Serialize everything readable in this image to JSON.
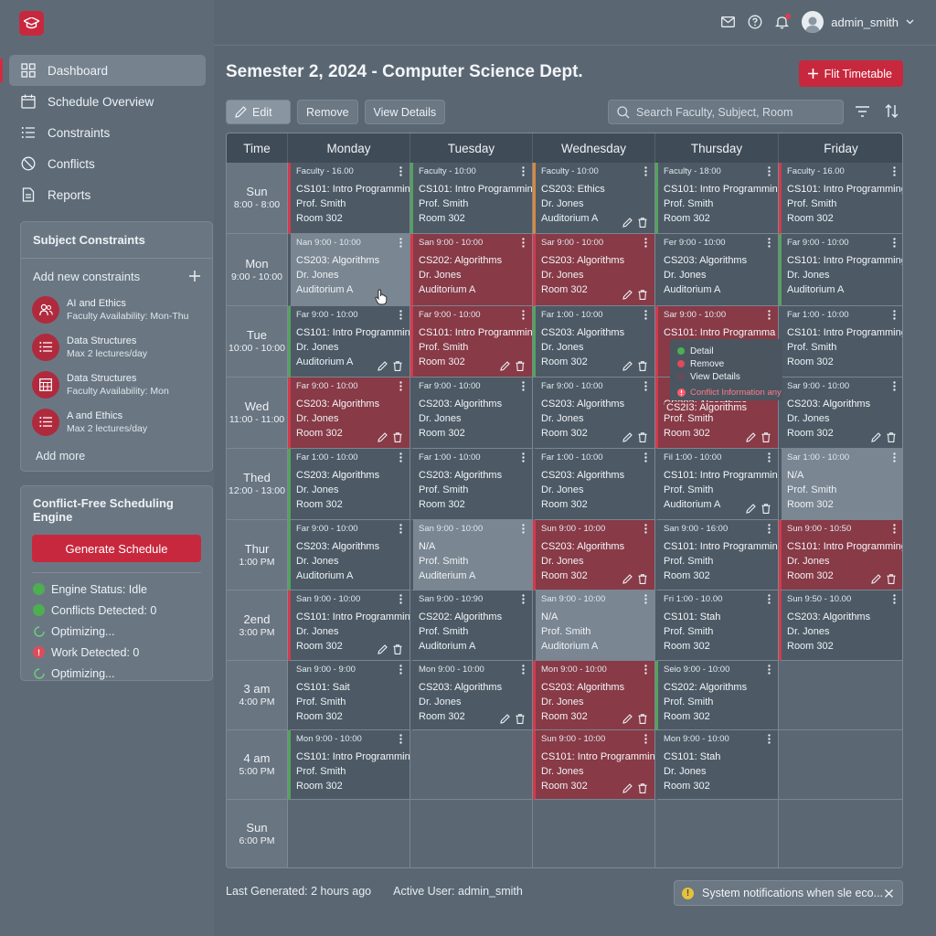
{
  "nav": [
    "Dashboard",
    "Schedule Overview",
    "Constraints",
    "Conflicts",
    "Reports"
  ],
  "constraints_panel": {
    "title": "Subject Constraints",
    "add_label": "Add new constraints",
    "items": [
      {
        "name": "AI and Ethics",
        "detail": "Faculty Availability: Mon-Thu",
        "icon": "people-icon"
      },
      {
        "name": "Data Structures",
        "detail": "Max 2 lectures/day",
        "icon": "list-icon"
      },
      {
        "name": "Data Structures",
        "detail": "Faculty Availability: Mon",
        "icon": "calendar-grid-icon"
      },
      {
        "name": "A and Ethics",
        "detail": "Max 2 lectures/day",
        "icon": "list-icon"
      }
    ],
    "add_more": "Add more"
  },
  "engine": {
    "title": "Conflict-Free Scheduling Engine",
    "button": "Generate Schedule",
    "status": [
      {
        "text": "Engine Status: Idle",
        "kind": "green"
      },
      {
        "text": "Conflicts Detected: 0",
        "kind": "green"
      },
      {
        "text": "Optimizing...",
        "kind": "spin"
      },
      {
        "text": "Work Detected: 0",
        "kind": "red"
      },
      {
        "text": "Optimizing...",
        "kind": "spin"
      }
    ]
  },
  "user": "admin_smith",
  "page_title": "Semester 2, 2024 - Computer Science Dept.",
  "fit_button": "Flit Timetable",
  "toolbar": {
    "edit": "Edit",
    "remove": "Remove",
    "view": "View Details"
  },
  "search_placeholder": "Search Faculty, Subject, Room",
  "headers": [
    "Time",
    "Monday",
    "Tuesday",
    "Wednesday",
    "Thursday",
    "Friday"
  ],
  "rows": [
    {
      "day": "Sun",
      "time": "8:00 - 8:00",
      "cells": [
        {
          "t": "Faculty - 16.00",
          "s": "CS101: Intro Programming",
          "p": "Prof. Smith",
          "r": "Room 302",
          "c": "r"
        },
        {
          "t": "Faculty - 10:00",
          "s": "CS101: Intro Programming",
          "p": "Prof. Smith",
          "r": "Room 302",
          "c": "g"
        },
        {
          "t": "Faculty - 10:00",
          "s": "CS203: Ethics",
          "p": "Dr. Jones",
          "r": "Auditorium A",
          "c": "o",
          "a": 1
        },
        {
          "t": "Faculty - 18:00",
          "s": "CS101: Intro Programming",
          "p": "Prof. Smith",
          "r": "Room 302",
          "c": "g"
        },
        {
          "t": "Faculty - 16.00",
          "s": "CS101: Intro Programming",
          "p": "Prof. Smith",
          "r": "Room 302",
          "c": "r"
        }
      ]
    },
    {
      "day": "Mon",
      "time": "9:00 - 10:00",
      "cells": [
        {
          "t": "Nan 9:00 - 10:00",
          "s": "CS203: Algorithms",
          "p": "Dr. Jones",
          "r": "Auditorium A",
          "c": "lt"
        },
        {
          "t": "San 9:00 - 10:00",
          "s": "CS202: Algorithms",
          "p": "Dr. Jones",
          "r": "Auditorium A",
          "c": "rb"
        },
        {
          "t": "Sar 9:00 - 10:00",
          "s": "CS203: Algorithms",
          "p": "Dr. Jones",
          "r": "Room 302",
          "c": "rb",
          "a": 1
        },
        {
          "t": "Fer 9:00 - 10:00",
          "s": "CS203: Algorithms",
          "p": "Dr. Jones",
          "r": "Auditorium A",
          "c": "n"
        },
        {
          "t": "Far 9:00 - 10:00",
          "s": "CS101: Intro Programming",
          "p": "Dr. Jones",
          "r": "Auditorium A",
          "c": "g"
        }
      ]
    },
    {
      "day": "Tue",
      "time": "10:00 - 10:00",
      "cells": [
        {
          "t": "Far 9:00 - 10:00",
          "s": "CS101: Intro Programming",
          "p": "Dr. Jones",
          "r": "Auditorium A",
          "c": "g",
          "a": 1
        },
        {
          "t": "Far 9:00 - 10:00",
          "s": "CS101: Intro Programming",
          "p": "Prof. Smith",
          "r": "Room 302",
          "c": "rb",
          "a": 1
        },
        {
          "t": "Far 1:00 - 10:00",
          "s": "CS203: Algorithms",
          "p": "Dr. Jones",
          "r": "Room 302",
          "c": "g",
          "a": 1
        },
        {
          "t": "Sar 9:00 - 10:00",
          "s": "CS101: Intro Programma",
          "p": "",
          "r": "",
          "c": "rb"
        },
        {
          "t": "Far 1:00 - 10:00",
          "s": "CS101: Intro Programming",
          "p": "Prof. Smith",
          "r": "Room 302",
          "c": "n"
        }
      ]
    },
    {
      "day": "Wed",
      "time": "11:00 - 11:00",
      "cells": [
        {
          "t": "Far 9:00 - 10:00",
          "s": "CS203: Algorithms",
          "p": "Dr. Jones",
          "r": "Room 302",
          "c": "rb",
          "a": 1
        },
        {
          "t": "Far 9:00 - 10:00",
          "s": "CS203: Algorithms",
          "p": "Dr. Jones",
          "r": "Room 302",
          "c": "n"
        },
        {
          "t": "Far 9:00 - 10:00",
          "s": "CS203: Algorithms",
          "p": "Dr. Jones",
          "r": "Room 302",
          "c": "n",
          "a": 1
        },
        {
          "t": "",
          "s": "CS203: Algorithms",
          "p": "Prof. Smith",
          "r": "Room 302",
          "c": "rb",
          "a": 1
        },
        {
          "t": "Sar 9:00 - 10:00",
          "s": "CS203: Algorithms",
          "p": "Dr. Jones",
          "r": "Room 302",
          "c": "n",
          "a": 1
        }
      ]
    },
    {
      "day": "Thed",
      "time": "12:00 - 13:00",
      "cells": [
        {
          "t": "Far 1:00 - 10:00",
          "s": "CS203: Algorithms",
          "p": "Dr. Jones",
          "r": "Room 302",
          "c": "g"
        },
        {
          "t": "Far 1:00 - 10:00",
          "s": "CS203: Algorithms",
          "p": "Prof. Smith",
          "r": "Room 302",
          "c": "n"
        },
        {
          "t": "Far 1:00 - 10:00",
          "s": "CS203: Algorithms",
          "p": "Dr. Jones",
          "r": "Room 302",
          "c": "n"
        },
        {
          "t": "Fil 1:00 - 10:00",
          "s": "CS101: Intro Programming",
          "p": "Prof. Smith",
          "r": "Auditorium A",
          "c": "n",
          "a": 1
        },
        {
          "t": "Sar 1:00 - 10:00",
          "s": "N/A",
          "p": "Prof. Smith",
          "r": "Room 302",
          "c": "lt"
        }
      ]
    },
    {
      "day": "Thur",
      "time": "1:00 PM",
      "cells": [
        {
          "t": "Far 9:00 - 10:00",
          "s": "CS203: Algorithms",
          "p": "Dr. Jones",
          "r": "Auditorium A",
          "c": "g"
        },
        {
          "t": "San 9:00 - 10:00",
          "s": "N/A",
          "p": "Prof. Smith",
          "r": "Auditerium A",
          "c": "lt"
        },
        {
          "t": "Sun 9:00 - 10:00",
          "s": "CS203: Algorithms",
          "p": "Dr. Jones",
          "r": "Room 302",
          "c": "rb",
          "a": 1
        },
        {
          "t": "San 9:00 - 16:00",
          "s": "CS101: Intro Programming",
          "p": "Prof. Smith",
          "r": "Room 302",
          "c": "n"
        },
        {
          "t": "Sun 9:00 - 10:50",
          "s": "CS101: Intro Programming",
          "p": "Dr. Jones",
          "r": "Room 302",
          "c": "rb",
          "a": 1
        }
      ]
    },
    {
      "day": "2end",
      "time": "3:00 PM",
      "cells": [
        {
          "t": "San 9:00 - 10:00",
          "s": "CS101: Intro Programming",
          "p": "Dr. Jones",
          "r": "Room 302",
          "c": "r",
          "a": 1
        },
        {
          "t": "San 9:00 - 10:90",
          "s": "CS202: Algorithms",
          "p": "Prof. Smith",
          "r": "Auditorium A",
          "c": "n"
        },
        {
          "t": "San 9:00 - 10:00",
          "s": "N/A",
          "p": "Prof. Smith",
          "r": "Auditorium A",
          "c": "lt"
        },
        {
          "t": "Fri 1:00 - 10.00",
          "s": "CS101: Stah",
          "p": "Prof. Smith",
          "r": "Room 302",
          "c": "n"
        },
        {
          "t": "Sun 9:50 - 10.00",
          "s": "CS203: Algorithms",
          "p": "Dr. Jones",
          "r": "Room 302",
          "c": "r"
        }
      ]
    },
    {
      "day": "3 am",
      "time": "4:00 PM",
      "cells": [
        {
          "t": "San 9:00 - 9:00",
          "s": "CS101: Sait",
          "p": "Prof. Smith",
          "r": "Room 302",
          "c": "n"
        },
        {
          "t": "Mon 9:00 - 10:00",
          "s": "CS203: Algorithms",
          "p": "Dr. Jones",
          "r": "Room 302",
          "c": "n",
          "a": 1
        },
        {
          "t": "Mon 9:00 - 10:00",
          "s": "CS203: Algorithms",
          "p": "Dr. Jones",
          "r": "Room 302",
          "c": "rb",
          "a": 1
        },
        {
          "t": "Seio 9:00 - 10:00",
          "s": "CS202: Algorithms",
          "p": "Prof. Smith",
          "r": "Room 302",
          "c": "g"
        },
        {
          "e": 1
        }
      ]
    },
    {
      "day": "4 am",
      "time": "5:00 PM",
      "cells": [
        {
          "t": "Mon 9:00 - 10:00",
          "s": "CS101: Intro Programming",
          "p": "Prof. Smith",
          "r": "Room 302",
          "c": "g"
        },
        {
          "e": 1
        },
        {
          "t": "Sun 9:00 - 10:00",
          "s": "CS101: Intro Programming",
          "p": "Dr. Jones",
          "r": "Room 302",
          "c": "rb",
          "a": 1
        },
        {
          "t": "Mon 9:00 - 10:00",
          "s": "CS101: Stah",
          "p": "Dr. Jones",
          "r": "Room 302",
          "c": "n"
        },
        {
          "e": 1
        }
      ]
    },
    {
      "day": "Sun",
      "time": "6:00 PM",
      "cells": [
        {
          "e": 1
        },
        {
          "e": 1
        },
        {
          "e": 1
        },
        {
          "e": 1
        },
        {
          "e": 1
        }
      ]
    }
  ],
  "popup": {
    "items": [
      {
        "label": "Detail",
        "color": "#4caf50"
      },
      {
        "label": "Remove",
        "color": "#e04a5a"
      },
      {
        "label": "View Details",
        "color": "#6a4a5a"
      }
    ],
    "warning": "Conflict Information any",
    "overlap_time": "CS2I3: Algorithms"
  },
  "footer": {
    "last_generated": "Last Generated: 2 hours ago",
    "active_user": "Active User: admin_smith"
  },
  "toast": "System notifications when sle eco..."
}
